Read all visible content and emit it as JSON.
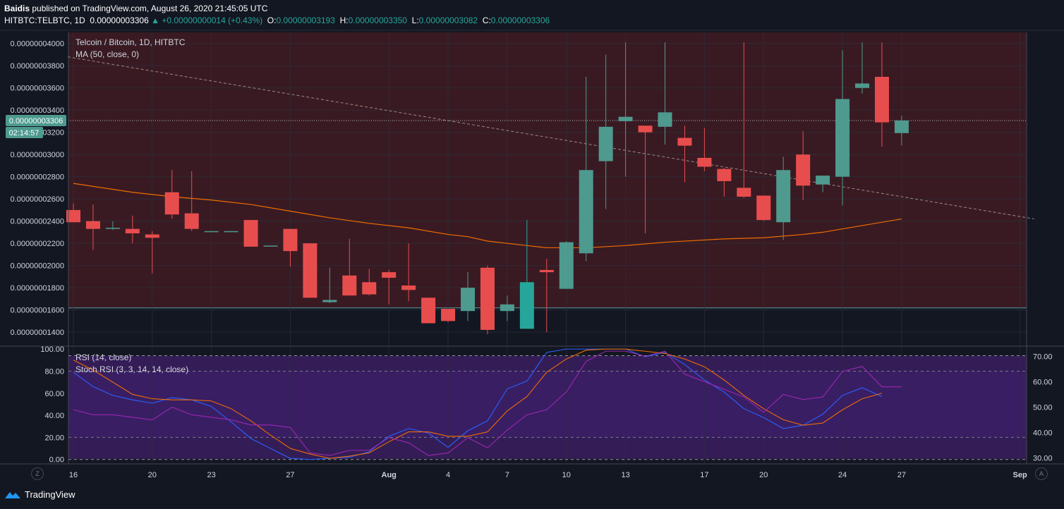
{
  "publish_line": {
    "author": "Baidis",
    "text": "published on TradingView.com, August 26, 2020 21:45:05 UTC"
  },
  "quote_line": {
    "symbol": "HITBTC:TELBTC, 1D",
    "last": "0.00000003306",
    "change": "+0.00000000014 (+0.43%)",
    "open_label": "O:",
    "open": "0.00000003193",
    "high_label": "H:",
    "high": "0.00000003350",
    "low_label": "L:",
    "low": "0.00000003082",
    "close_label": "C:",
    "close": "0.00000003306"
  },
  "legend": {
    "title": "Telcoin / Bitcoin, 1D, HITBTC",
    "ma": "MA (50, close, 0)",
    "rsi": "RSI (14, close)",
    "stoch": "Stoch RSI (3, 3, 14, 14, close)"
  },
  "price_tag": {
    "value": "0.00000003306",
    "countdown": "02:14:57"
  },
  "axis_buttons": {
    "left": "Z",
    "right": "A"
  },
  "brand": {
    "name": "TradingView"
  },
  "colors": {
    "up": "#4e9a8e",
    "down": "#e84d4d",
    "up_highlight": "#26a69a",
    "ma": "#ef6c00",
    "stoch_k": "#2962ff",
    "stoch_d": "#ef6c00",
    "rsi": "#9c27b0"
  },
  "chart_data": [
    {
      "type": "candlestick",
      "title": "Telcoin / Bitcoin, 1D, HITBTC",
      "price_scale": 1e-11,
      "y_ticks": [
        1400,
        1600,
        1800,
        2000,
        2200,
        2400,
        2600,
        2800,
        3000,
        3200,
        3400,
        3600,
        3800,
        4000
      ],
      "y_tick_labels": [
        "0.00000001400",
        "0.00000001600",
        "0.00000001800",
        "0.00000002000",
        "0.00000002200",
        "0.00000002400",
        "0.00000002600",
        "0.00000002800",
        "0.00000003000",
        "0.00000003200",
        "0.00000003400",
        "0.00000003600",
        "0.00000003800",
        "0.00000004000"
      ],
      "ylim": [
        1280,
        4100
      ],
      "x_ticks": [
        {
          "day": 0,
          "label": "16"
        },
        {
          "day": 4,
          "label": "20"
        },
        {
          "day": 7,
          "label": "23"
        },
        {
          "day": 11,
          "label": "27"
        },
        {
          "day": 16,
          "label": "Aug"
        },
        {
          "day": 19,
          "label": "4"
        },
        {
          "day": 22,
          "label": "7"
        },
        {
          "day": 25,
          "label": "10"
        },
        {
          "day": 28,
          "label": "13"
        },
        {
          "day": 32,
          "label": "17"
        },
        {
          "day": 35,
          "label": "20"
        },
        {
          "day": 39,
          "label": "24"
        },
        {
          "day": 42,
          "label": "27"
        },
        {
          "day": 48,
          "label": "Sep"
        }
      ],
      "candles": [
        {
          "o": 2500,
          "h": 2560,
          "l": 2390,
          "c": 2390
        },
        {
          "o": 2400,
          "h": 2550,
          "l": 2140,
          "c": 2330
        },
        {
          "o": 2330,
          "h": 2400,
          "l": 2320,
          "c": 2340
        },
        {
          "o": 2330,
          "h": 2450,
          "l": 2200,
          "c": 2290
        },
        {
          "o": 2280,
          "h": 2310,
          "l": 1930,
          "c": 2250
        },
        {
          "o": 2660,
          "h": 2860,
          "l": 2420,
          "c": 2460
        },
        {
          "o": 2470,
          "h": 2850,
          "l": 2310,
          "c": 2330
        },
        {
          "o": 2310,
          "h": 2310,
          "l": 2310,
          "c": 2310
        },
        {
          "o": 2310,
          "h": 2310,
          "l": 2310,
          "c": 2310
        },
        {
          "o": 2410,
          "h": 2410,
          "l": 2170,
          "c": 2170
        },
        {
          "o": 2180,
          "h": 2180,
          "l": 2180,
          "c": 2180
        },
        {
          "o": 2330,
          "h": 2330,
          "l": 1990,
          "c": 2130
        },
        {
          "o": 2200,
          "h": 2200,
          "l": 1710,
          "c": 1710
        },
        {
          "o": 1670,
          "h": 1980,
          "l": 1660,
          "c": 1690
        },
        {
          "o": 1910,
          "h": 2240,
          "l": 1730,
          "c": 1730
        },
        {
          "o": 1850,
          "h": 1970,
          "l": 1730,
          "c": 1740
        },
        {
          "o": 1940,
          "h": 1960,
          "l": 1650,
          "c": 1890
        },
        {
          "o": 1820,
          "h": 2200,
          "l": 1680,
          "c": 1780
        },
        {
          "o": 1710,
          "h": 1710,
          "l": 1480,
          "c": 1480
        },
        {
          "o": 1610,
          "h": 1610,
          "l": 1490,
          "c": 1500
        },
        {
          "o": 1590,
          "h": 1940,
          "l": 1500,
          "c": 1800
        },
        {
          "o": 1980,
          "h": 2000,
          "l": 1380,
          "c": 1420
        },
        {
          "o": 1590,
          "h": 1730,
          "l": 1500,
          "c": 1650
        },
        {
          "o": 1430,
          "h": 2410,
          "l": 1430,
          "c": 1850,
          "highlight": true
        },
        {
          "o": 1960,
          "h": 2060,
          "l": 1400,
          "c": 1940
        },
        {
          "o": 1790,
          "h": 2220,
          "l": 1790,
          "c": 2210
        },
        {
          "o": 2110,
          "h": 3700,
          "l": 2040,
          "c": 2860
        },
        {
          "o": 2940,
          "h": 3900,
          "l": 2510,
          "c": 3250
        },
        {
          "o": 3300,
          "h": 4010,
          "l": 2800,
          "c": 3340
        },
        {
          "o": 3260,
          "h": 3260,
          "l": 2290,
          "c": 3200
        },
        {
          "o": 3250,
          "h": 4010,
          "l": 3090,
          "c": 3380
        },
        {
          "o": 3150,
          "h": 3260,
          "l": 2750,
          "c": 3080
        },
        {
          "o": 2970,
          "h": 3240,
          "l": 2850,
          "c": 2890
        },
        {
          "o": 2870,
          "h": 2880,
          "l": 2620,
          "c": 2760
        },
        {
          "o": 2700,
          "h": 4010,
          "l": 2610,
          "c": 2620
        },
        {
          "o": 2630,
          "h": 2630,
          "l": 2400,
          "c": 2410
        },
        {
          "o": 2390,
          "h": 2980,
          "l": 2230,
          "c": 2860
        },
        {
          "o": 3000,
          "h": 3210,
          "l": 2590,
          "c": 2720
        },
        {
          "o": 2730,
          "h": 2810,
          "l": 2660,
          "c": 2810
        },
        {
          "o": 2800,
          "h": 3940,
          "l": 2540,
          "c": 3500
        },
        {
          "o": 3600,
          "h": 4010,
          "l": 3550,
          "c": 3640
        },
        {
          "o": 3700,
          "h": 4010,
          "l": 3070,
          "c": 3290
        },
        {
          "o": 3193,
          "h": 3350,
          "l": 3082,
          "c": 3306
        }
      ],
      "ma50": [
        [
          0,
          2740
        ],
        [
          3,
          2660
        ],
        [
          5,
          2620
        ],
        [
          7,
          2590
        ],
        [
          9,
          2550
        ],
        [
          11,
          2490
        ],
        [
          13,
          2430
        ],
        [
          15,
          2380
        ],
        [
          17,
          2340
        ],
        [
          19,
          2280
        ],
        [
          20,
          2260
        ],
        [
          21,
          2220
        ],
        [
          23,
          2180
        ],
        [
          24,
          2160
        ],
        [
          26,
          2160
        ],
        [
          28,
          2180
        ],
        [
          30,
          2210
        ],
        [
          33,
          2240
        ],
        [
          35,
          2250
        ],
        [
          37,
          2280
        ],
        [
          38,
          2300
        ],
        [
          40,
          2360
        ],
        [
          42,
          2420
        ]
      ],
      "trendline": {
        "from": [
          0,
          3880
        ],
        "to": [
          48,
          2420
        ]
      }
    },
    {
      "type": "line",
      "title": "RSI (14, close) / Stoch RSI (3, 3, 14, 14, close)",
      "left_axis": {
        "ylim": [
          -4,
          102
        ],
        "ticks": [
          "100.00",
          "80.00",
          "60.00",
          "40.00",
          "20.00",
          "0.00"
        ]
      },
      "right_axis": {
        "ylim": [
          27.7,
          73.7
        ],
        "ticks": [
          "70.00",
          "60.00",
          "50.00",
          "40.00",
          "30.00"
        ]
      },
      "bands": {
        "stoch_upper": 80,
        "stoch_lower": 20,
        "stoch_top": 94,
        "stoch_bottom": 0,
        "rsi_upper": 70,
        "rsi_lower": 30
      },
      "series": [
        {
          "name": "Stoch RSI %K",
          "axis": "left",
          "values": [
            79,
            66,
            58,
            54,
            51,
            56,
            54,
            48,
            34,
            19,
            10,
            1,
            0,
            1,
            2,
            7,
            21,
            28,
            24,
            11,
            26,
            35,
            64,
            71,
            97,
            100,
            100,
            100,
            100,
            93,
            97,
            86,
            72,
            61,
            46,
            38,
            28,
            31,
            41,
            58,
            65,
            57
          ]
        },
        {
          "name": "Stoch RSI %D",
          "axis": "left",
          "values": [
            90,
            81,
            70,
            59,
            55,
            54,
            54,
            53,
            46,
            35,
            22,
            10,
            5,
            1,
            3,
            6,
            16,
            25,
            25,
            21,
            21,
            25,
            44,
            57,
            79,
            91,
            99,
            100,
            100,
            98,
            96,
            91,
            84,
            72,
            58,
            46,
            36,
            31,
            33,
            45,
            55,
            60
          ]
        },
        {
          "name": "RSI",
          "axis": "right",
          "values": [
            49,
            47,
            47,
            46,
            45,
            50,
            47,
            46,
            45,
            43,
            43,
            42,
            32,
            31,
            33,
            33,
            38,
            36,
            31,
            32,
            38,
            34,
            41,
            47,
            49,
            56,
            68,
            72,
            72,
            70,
            72,
            63,
            60,
            57,
            54,
            48,
            55,
            53,
            54,
            64,
            66,
            58,
            58
          ]
        }
      ]
    }
  ]
}
